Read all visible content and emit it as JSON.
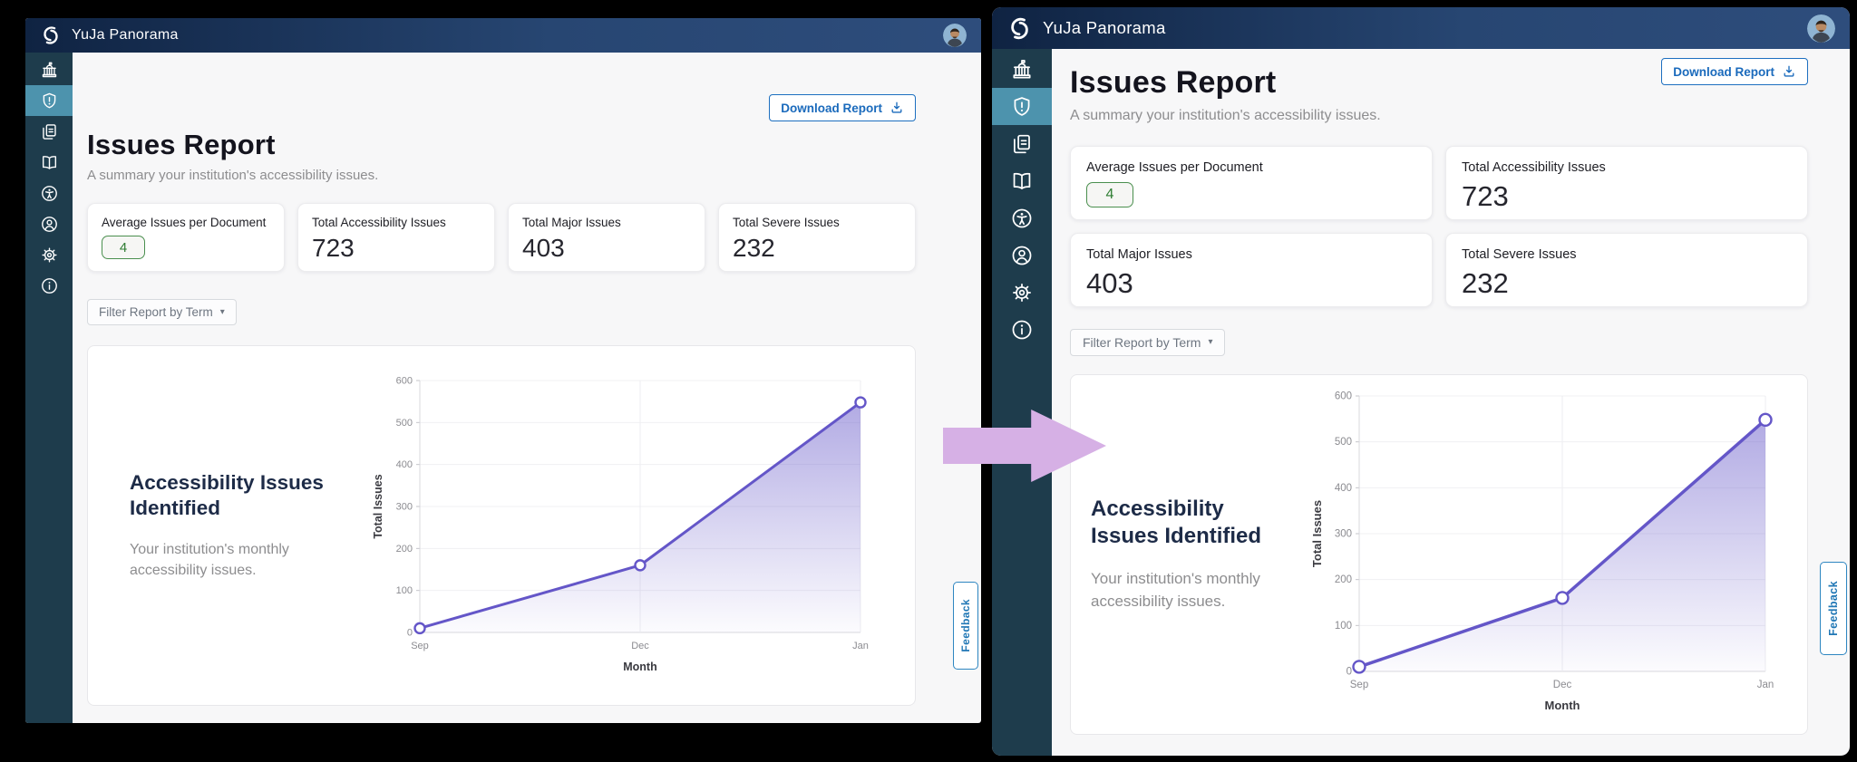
{
  "app": {
    "title": "YuJa Panorama"
  },
  "toolbar": {
    "download_label": "Download Report"
  },
  "page": {
    "title": "Issues Report",
    "subtitle": "A summary your institution's accessibility issues."
  },
  "sidebar": {
    "items": [
      {
        "name": "institution",
        "active": false
      },
      {
        "name": "issues-shield",
        "active": true
      },
      {
        "name": "documents",
        "active": false
      },
      {
        "name": "courses-book",
        "active": false
      },
      {
        "name": "accessibility",
        "active": false
      },
      {
        "name": "account",
        "active": false
      },
      {
        "name": "settings",
        "active": false
      },
      {
        "name": "info",
        "active": false
      }
    ]
  },
  "stats": [
    {
      "label": "Average Issues per Document",
      "value": "4",
      "style": "boxed-green"
    },
    {
      "label": "Total Accessibility Issues",
      "value": "723",
      "style": "plain"
    },
    {
      "label": "Total Major Issues",
      "value": "403",
      "style": "plain"
    },
    {
      "label": "Total Severe Issues",
      "value": "232",
      "style": "plain"
    }
  ],
  "filter": {
    "label": "Filter Report by Term",
    "caret": "▾"
  },
  "chart_section": {
    "heading": "Accessibility Issues Identified",
    "description": "Your institution's monthly accessibility issues."
  },
  "feedback": {
    "label": "Feedback"
  },
  "chart_data": {
    "type": "area",
    "x": [
      "Sep",
      "Dec",
      "Jan"
    ],
    "values": [
      10,
      160,
      548
    ],
    "title": "",
    "xlabel": "Month",
    "ylabel": "Total Issues",
    "ylim": [
      0,
      600
    ],
    "yticks": [
      0,
      100,
      200,
      300,
      400,
      500,
      600
    ],
    "grid": true,
    "legend": "none",
    "line_color": "#6456c8"
  },
  "colors": {
    "header_navy": "#2e4d7c",
    "sidebar_teal": "#1e3c4c",
    "active_item_teal": "#4d93ad",
    "accent_blue": "#1d6fc0",
    "badge_green": "#4a8f4e",
    "line_purple": "#6456c8",
    "arrow_lavender": "#d6b0e5"
  }
}
